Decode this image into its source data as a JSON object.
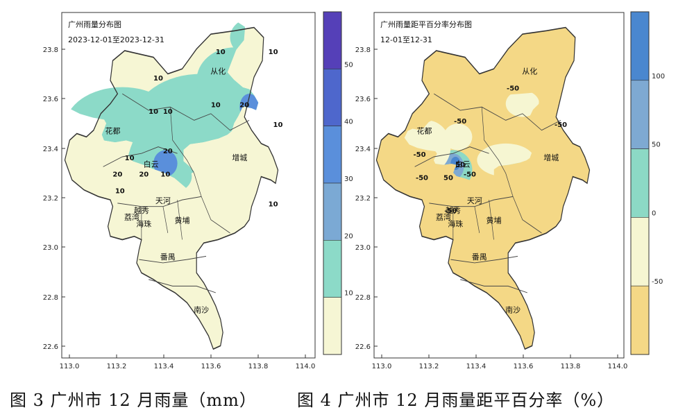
{
  "maps": [
    {
      "id": "rain",
      "title": "广州雨量分布图",
      "subtitle": "2023-12-01至2023-12-31",
      "y_ticks": [
        "23.8",
        "23.6",
        "23.4",
        "23.2",
        "23.0",
        "22.8",
        "22.6"
      ],
      "x_ticks": [
        "113.0",
        "113.2",
        "113.4",
        "113.6",
        "113.8",
        "114.0"
      ],
      "colorbar": {
        "colors": [
          "#5540b8",
          "#4e67cc",
          "#5a8fdb",
          "#7ba9d4",
          "#8cdac8",
          "#f6f6d4"
        ],
        "labels": [
          "50",
          "40",
          "30",
          "20",
          "10"
        ]
      },
      "districts": [
        "从化",
        "花都",
        "增城",
        "白云",
        "天河",
        "荔湾",
        "越秀",
        "海珠",
        "黄埔",
        "番禺",
        "南沙"
      ],
      "contour_labels": [
        "10",
        "10",
        "10",
        "10",
        "10",
        "20",
        "10",
        "10",
        "10",
        "20",
        "20",
        "20",
        "10",
        "10",
        "10"
      ]
    },
    {
      "id": "anomaly",
      "title": "广州雨量距平百分率分布图",
      "subtitle": "12-01至12-31",
      "y_ticks": [
        "23.8",
        "23.6",
        "23.4",
        "23.2",
        "23.0",
        "22.8",
        "22.6"
      ],
      "x_ticks": [
        "113.0",
        "113.2",
        "113.4",
        "113.6",
        "113.8",
        "114.0"
      ],
      "colorbar": {
        "colors": [
          "#4a87cf",
          "#7ea9d2",
          "#8cd9c5",
          "#f6f6d2",
          "#f4d886"
        ],
        "labels": [
          "100",
          "50",
          "0",
          "-50"
        ]
      },
      "districts": [
        "从化",
        "花都",
        "增城",
        "白云",
        "天河",
        "荔湾",
        "越秀",
        "海珠",
        "黄埔",
        "番禺",
        "南沙"
      ],
      "contour_labels": [
        "-50",
        "-50",
        "-50",
        "-50",
        "-50",
        "-50",
        "50",
        "50",
        "-50"
      ]
    }
  ],
  "captions": {
    "fig3": "图 3  广州市 12 月雨量（mm）",
    "fig4": "图 4  广州市 12 月雨量距平百分率（%）"
  }
}
